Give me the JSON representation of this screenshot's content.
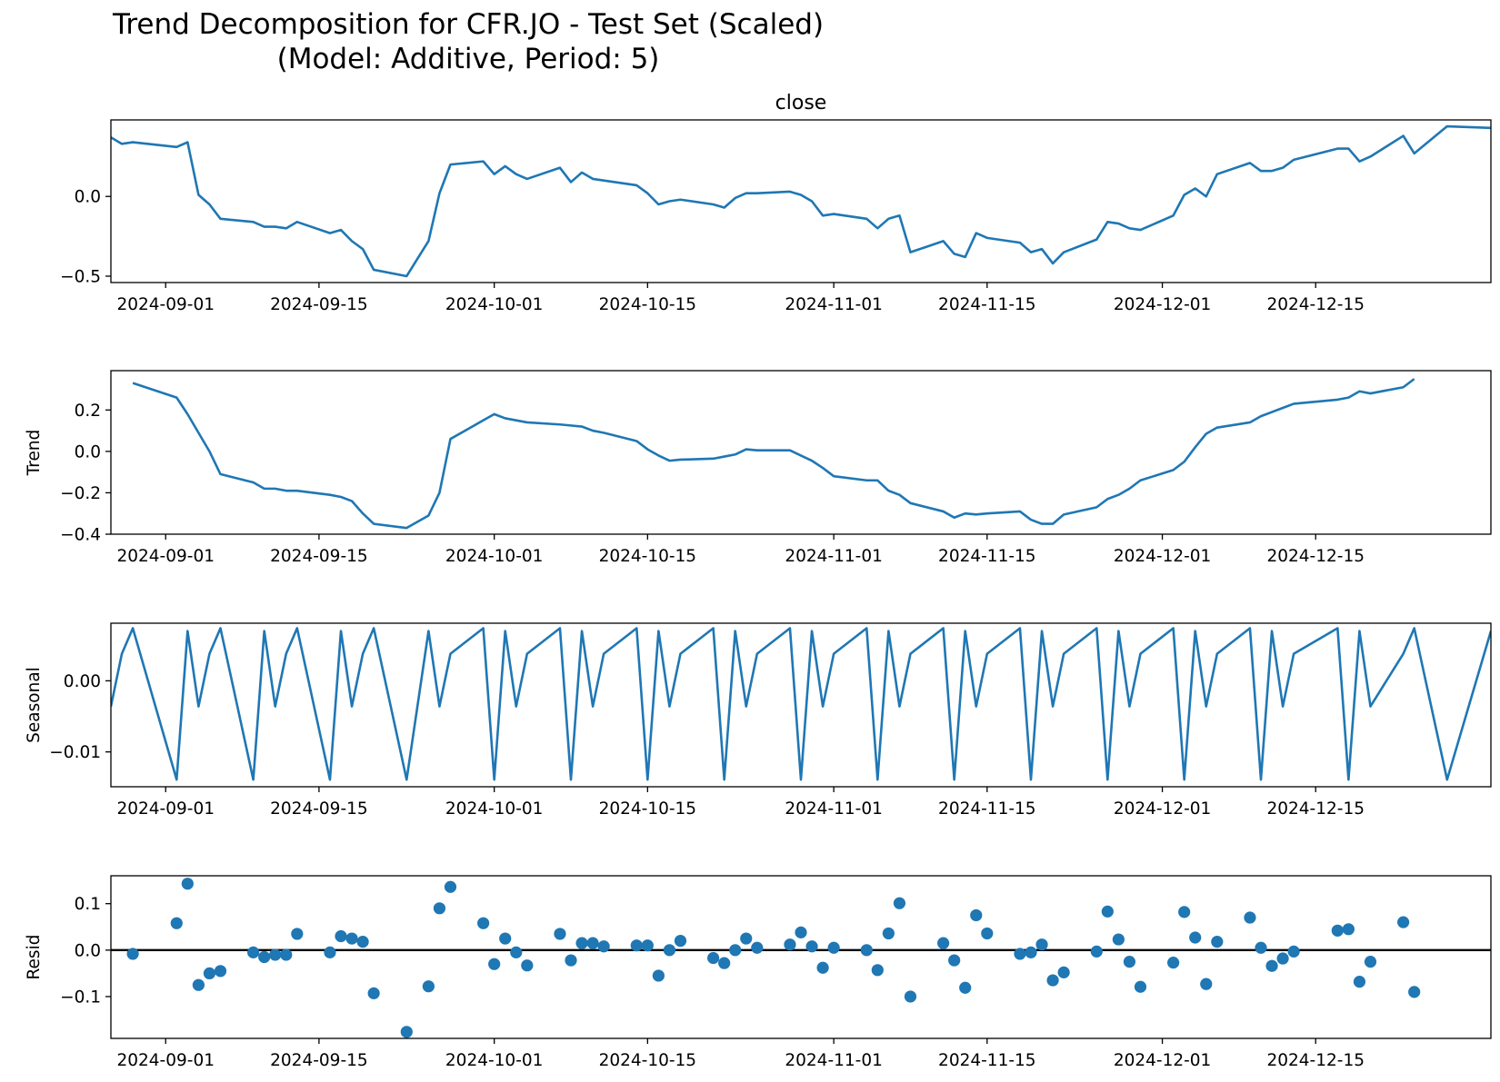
{
  "title": {
    "line1": "Trend Decomposition for CFR.JO - Test Set (Scaled)",
    "line2": "(Model: Additive, Period: 5)"
  },
  "colors": {
    "series": "#1f77b4",
    "zero_line": "#000000",
    "axes": "#000000"
  },
  "chart_data": [
    {
      "type": "line",
      "title": "close",
      "ylabel": "",
      "xlim": [
        "2024-08-27",
        "2024-12-31"
      ],
      "ylim": [
        -0.54,
        0.48
      ],
      "yticks": [
        0.0,
        -0.5
      ],
      "ytick_labels": [
        "0.0",
        "−0.5"
      ],
      "xticks": [
        "2024-09-01",
        "2024-09-15",
        "2024-10-01",
        "2024-10-15",
        "2024-11-01",
        "2024-11-15",
        "2024-12-01",
        "2024-12-15"
      ],
      "x": [
        "2024-08-27",
        "2024-08-28",
        "2024-08-29",
        "2024-09-02",
        "2024-09-03",
        "2024-09-04",
        "2024-09-05",
        "2024-09-06",
        "2024-09-09",
        "2024-09-10",
        "2024-09-11",
        "2024-09-12",
        "2024-09-13",
        "2024-09-16",
        "2024-09-17",
        "2024-09-18",
        "2024-09-19",
        "2024-09-20",
        "2024-09-23",
        "2024-09-25",
        "2024-09-26",
        "2024-09-27",
        "2024-09-30",
        "2024-10-01",
        "2024-10-02",
        "2024-10-03",
        "2024-10-04",
        "2024-10-07",
        "2024-10-08",
        "2024-10-09",
        "2024-10-10",
        "2024-10-11",
        "2024-10-14",
        "2024-10-15",
        "2024-10-16",
        "2024-10-17",
        "2024-10-18",
        "2024-10-21",
        "2024-10-22",
        "2024-10-23",
        "2024-10-24",
        "2024-10-25",
        "2024-10-28",
        "2024-10-29",
        "2024-10-30",
        "2024-10-31",
        "2024-11-01",
        "2024-11-04",
        "2024-11-05",
        "2024-11-06",
        "2024-11-07",
        "2024-11-08",
        "2024-11-11",
        "2024-11-12",
        "2024-11-13",
        "2024-11-14",
        "2024-11-15",
        "2024-11-18",
        "2024-11-19",
        "2024-11-20",
        "2024-11-21",
        "2024-11-22",
        "2024-11-25",
        "2024-11-26",
        "2024-11-27",
        "2024-11-28",
        "2024-11-29",
        "2024-12-02",
        "2024-12-03",
        "2024-12-04",
        "2024-12-05",
        "2024-12-06",
        "2024-12-09",
        "2024-12-10",
        "2024-12-11",
        "2024-12-12",
        "2024-12-13",
        "2024-12-17",
        "2024-12-18",
        "2024-12-19",
        "2024-12-20",
        "2024-12-23",
        "2024-12-24",
        "2024-12-27",
        "2024-12-31"
      ],
      "series": [
        {
          "values": [
            0.37,
            0.33,
            0.34,
            0.31,
            0.34,
            0.01,
            -0.05,
            -0.14,
            -0.16,
            -0.19,
            -0.19,
            -0.2,
            -0.16,
            -0.23,
            -0.21,
            -0.28,
            -0.33,
            -0.46,
            -0.5,
            -0.28,
            0.02,
            0.2,
            0.22,
            0.14,
            0.19,
            0.14,
            0.11,
            0.18,
            0.09,
            0.15,
            0.11,
            0.1,
            0.07,
            0.02,
            -0.05,
            -0.03,
            -0.02,
            -0.05,
            -0.07,
            -0.01,
            0.02,
            0.02,
            0.03,
            0.01,
            -0.03,
            -0.12,
            -0.11,
            -0.14,
            -0.2,
            -0.14,
            -0.12,
            -0.35,
            -0.28,
            -0.36,
            -0.38,
            -0.23,
            -0.26,
            -0.29,
            -0.35,
            -0.33,
            -0.42,
            -0.35,
            -0.27,
            -0.16,
            -0.17,
            -0.2,
            -0.21,
            -0.12,
            0.01,
            0.05,
            0.0,
            0.14,
            0.21,
            0.16,
            0.16,
            0.18,
            0.23,
            0.3,
            0.3,
            0.22,
            0.25,
            0.38,
            0.27,
            0.44,
            0.43
          ]
        }
      ]
    },
    {
      "type": "line",
      "title": "",
      "ylabel": "Trend",
      "xlim": [
        "2024-08-27",
        "2024-12-31"
      ],
      "ylim": [
        -0.4,
        0.39
      ],
      "yticks": [
        0.2,
        0.0,
        -0.2,
        -0.4
      ],
      "ytick_labels": [
        "0.2",
        "0.0",
        "−0.2",
        "−0.4"
      ],
      "xticks": [
        "2024-09-01",
        "2024-09-15",
        "2024-10-01",
        "2024-10-15",
        "2024-11-01",
        "2024-11-15",
        "2024-12-01",
        "2024-12-15"
      ],
      "x": [
        "2024-08-29",
        "2024-09-02",
        "2024-09-03",
        "2024-09-04",
        "2024-09-05",
        "2024-09-06",
        "2024-09-09",
        "2024-09-10",
        "2024-09-11",
        "2024-09-12",
        "2024-09-13",
        "2024-09-16",
        "2024-09-17",
        "2024-09-18",
        "2024-09-19",
        "2024-09-20",
        "2024-09-23",
        "2024-09-25",
        "2024-09-26",
        "2024-09-27",
        "2024-09-30",
        "2024-10-01",
        "2024-10-02",
        "2024-10-03",
        "2024-10-04",
        "2024-10-07",
        "2024-10-08",
        "2024-10-09",
        "2024-10-10",
        "2024-10-11",
        "2024-10-14",
        "2024-10-15",
        "2024-10-16",
        "2024-10-17",
        "2024-10-18",
        "2024-10-21",
        "2024-10-22",
        "2024-10-23",
        "2024-10-24",
        "2024-10-25",
        "2024-10-28",
        "2024-10-29",
        "2024-10-30",
        "2024-10-31",
        "2024-11-01",
        "2024-11-04",
        "2024-11-05",
        "2024-11-06",
        "2024-11-07",
        "2024-11-08",
        "2024-11-11",
        "2024-11-12",
        "2024-11-13",
        "2024-11-14",
        "2024-11-15",
        "2024-11-18",
        "2024-11-19",
        "2024-11-20",
        "2024-11-21",
        "2024-11-22",
        "2024-11-25",
        "2024-11-26",
        "2024-11-27",
        "2024-11-28",
        "2024-11-29",
        "2024-12-02",
        "2024-12-03",
        "2024-12-04",
        "2024-12-05",
        "2024-12-06",
        "2024-12-09",
        "2024-12-10",
        "2024-12-11",
        "2024-12-12",
        "2024-12-13",
        "2024-12-17",
        "2024-12-18",
        "2024-12-19",
        "2024-12-20",
        "2024-12-23",
        "2024-12-24"
      ],
      "series": [
        {
          "values": [
            0.33,
            0.26,
            0.18,
            0.09,
            0.0,
            -0.11,
            -0.15,
            -0.18,
            -0.18,
            -0.19,
            -0.19,
            -0.21,
            -0.22,
            -0.24,
            -0.3,
            -0.35,
            -0.37,
            -0.31,
            -0.2,
            0.06,
            0.15,
            0.18,
            0.16,
            0.15,
            0.14,
            0.13,
            0.125,
            0.12,
            0.1,
            0.09,
            0.05,
            0.01,
            -0.02,
            -0.045,
            -0.04,
            -0.035,
            -0.025,
            -0.015,
            0.01,
            0.005,
            0.005,
            -0.02,
            -0.045,
            -0.08,
            -0.12,
            -0.14,
            -0.14,
            -0.19,
            -0.21,
            -0.25,
            -0.29,
            -0.32,
            -0.3,
            -0.305,
            -0.3,
            -0.29,
            -0.33,
            -0.35,
            -0.35,
            -0.305,
            -0.27,
            -0.23,
            -0.21,
            -0.18,
            -0.14,
            -0.09,
            -0.05,
            0.02,
            0.085,
            0.115,
            0.14,
            0.17,
            0.19,
            0.21,
            0.23,
            0.25,
            0.26,
            0.29,
            0.28,
            0.31,
            0.35
          ]
        }
      ]
    },
    {
      "type": "line",
      "title": "",
      "ylabel": "Seasonal",
      "xlim": [
        "2024-08-27",
        "2024-12-31"
      ],
      "ylim": [
        -0.0149,
        0.0081
      ],
      "yticks": [
        0.0,
        -0.01
      ],
      "ytick_labels": [
        "0.00",
        "−0.01"
      ],
      "xticks": [
        "2024-09-01",
        "2024-09-15",
        "2024-10-01",
        "2024-10-15",
        "2024-11-01",
        "2024-11-15",
        "2024-12-01",
        "2024-12-15"
      ],
      "x": [
        "2024-08-27",
        "2024-08-28",
        "2024-08-29",
        "2024-09-02",
        "2024-09-03",
        "2024-09-04",
        "2024-09-05",
        "2024-09-06",
        "2024-09-09",
        "2024-09-10",
        "2024-09-11",
        "2024-09-12",
        "2024-09-13",
        "2024-09-16",
        "2024-09-17",
        "2024-09-18",
        "2024-09-19",
        "2024-09-20",
        "2024-09-23",
        "2024-09-25",
        "2024-09-26",
        "2024-09-27",
        "2024-09-30",
        "2024-10-01",
        "2024-10-02",
        "2024-10-03",
        "2024-10-04",
        "2024-10-07",
        "2024-10-08",
        "2024-10-09",
        "2024-10-10",
        "2024-10-11",
        "2024-10-14",
        "2024-10-15",
        "2024-10-16",
        "2024-10-17",
        "2024-10-18",
        "2024-10-21",
        "2024-10-22",
        "2024-10-23",
        "2024-10-24",
        "2024-10-25",
        "2024-10-28",
        "2024-10-29",
        "2024-10-30",
        "2024-10-31",
        "2024-11-01",
        "2024-11-04",
        "2024-11-05",
        "2024-11-06",
        "2024-11-07",
        "2024-11-08",
        "2024-11-11",
        "2024-11-12",
        "2024-11-13",
        "2024-11-14",
        "2024-11-15",
        "2024-11-18",
        "2024-11-19",
        "2024-11-20",
        "2024-11-21",
        "2024-11-22",
        "2024-11-25",
        "2024-11-26",
        "2024-11-27",
        "2024-11-28",
        "2024-11-29",
        "2024-12-02",
        "2024-12-03",
        "2024-12-04",
        "2024-12-05",
        "2024-12-06",
        "2024-12-09",
        "2024-12-10",
        "2024-12-11",
        "2024-12-12",
        "2024-12-13",
        "2024-12-17",
        "2024-12-18",
        "2024-12-19",
        "2024-12-20",
        "2024-12-23",
        "2024-12-24",
        "2024-12-27",
        "2024-12-31"
      ],
      "series": [
        {
          "values": [
            -0.0036,
            0.0038,
            0.0074,
            -0.0139,
            0.007,
            -0.0036,
            0.0038,
            0.0074,
            -0.0139,
            0.007,
            -0.0036,
            0.0038,
            0.0074,
            -0.0139,
            0.007,
            -0.0036,
            0.0038,
            0.0074,
            -0.0139,
            0.007,
            -0.0036,
            0.0038,
            0.0074,
            -0.0139,
            0.007,
            -0.0036,
            0.0038,
            0.0074,
            -0.0139,
            0.007,
            -0.0036,
            0.0038,
            0.0074,
            -0.0139,
            0.007,
            -0.0036,
            0.0038,
            0.0074,
            -0.0139,
            0.007,
            -0.0036,
            0.0038,
            0.0074,
            -0.0139,
            0.007,
            -0.0036,
            0.0038,
            0.0074,
            -0.0139,
            0.007,
            -0.0036,
            0.0038,
            0.0074,
            -0.0139,
            0.007,
            -0.0036,
            0.0038,
            0.0074,
            -0.0139,
            0.007,
            -0.0036,
            0.0038,
            0.0074,
            -0.0139,
            0.007,
            -0.0036,
            0.0038,
            0.0074,
            -0.0139,
            0.007,
            -0.0036,
            0.0038,
            0.0074,
            -0.0139,
            0.007,
            -0.0036,
            0.0038,
            0.0074,
            -0.0139,
            0.007,
            -0.0036,
            0.0038,
            0.0074,
            -0.0139,
            0.007
          ]
        }
      ]
    },
    {
      "type": "scatter",
      "title": "",
      "ylabel": "Resid",
      "xlim": [
        "2024-08-27",
        "2024-12-31"
      ],
      "ylim": [
        -0.19,
        0.16
      ],
      "yticks": [
        0.1,
        0.0,
        -0.1
      ],
      "ytick_labels": [
        "0.1",
        "0.0",
        "−0.1"
      ],
      "zero_line": 0.0,
      "xticks": [
        "2024-09-01",
        "2024-09-15",
        "2024-10-01",
        "2024-10-15",
        "2024-11-01",
        "2024-11-15",
        "2024-12-01",
        "2024-12-15"
      ],
      "x": [
        "2024-08-29",
        "2024-09-02",
        "2024-09-03",
        "2024-09-04",
        "2024-09-05",
        "2024-09-06",
        "2024-09-09",
        "2024-09-10",
        "2024-09-11",
        "2024-09-12",
        "2024-09-13",
        "2024-09-16",
        "2024-09-17",
        "2024-09-18",
        "2024-09-19",
        "2024-09-20",
        "2024-09-23",
        "2024-09-25",
        "2024-09-26",
        "2024-09-27",
        "2024-09-30",
        "2024-10-01",
        "2024-10-02",
        "2024-10-03",
        "2024-10-04",
        "2024-10-07",
        "2024-10-08",
        "2024-10-09",
        "2024-10-10",
        "2024-10-11",
        "2024-10-14",
        "2024-10-15",
        "2024-10-16",
        "2024-10-17",
        "2024-10-18",
        "2024-10-21",
        "2024-10-22",
        "2024-10-23",
        "2024-10-24",
        "2024-10-25",
        "2024-10-28",
        "2024-10-29",
        "2024-10-30",
        "2024-10-31",
        "2024-11-01",
        "2024-11-04",
        "2024-11-05",
        "2024-11-06",
        "2024-11-07",
        "2024-11-08",
        "2024-11-11",
        "2024-11-12",
        "2024-11-13",
        "2024-11-14",
        "2024-11-15",
        "2024-11-18",
        "2024-11-19",
        "2024-11-20",
        "2024-11-21",
        "2024-11-22",
        "2024-11-25",
        "2024-11-26",
        "2024-11-27",
        "2024-11-28",
        "2024-11-29",
        "2024-12-02",
        "2024-12-03",
        "2024-12-04",
        "2024-12-05",
        "2024-12-06",
        "2024-12-09",
        "2024-12-10",
        "2024-12-11",
        "2024-12-12",
        "2024-12-13",
        "2024-12-17",
        "2024-12-18",
        "2024-12-19",
        "2024-12-20",
        "2024-12-23",
        "2024-12-24"
      ],
      "series": [
        {
          "values": [
            -0.008,
            0.058,
            0.143,
            -0.075,
            -0.05,
            -0.045,
            -0.005,
            -0.015,
            -0.01,
            -0.01,
            0.035,
            -0.005,
            0.03,
            0.025,
            0.018,
            -0.093,
            -0.176,
            -0.078,
            0.09,
            0.136,
            0.058,
            -0.03,
            0.025,
            -0.005,
            -0.033,
            0.035,
            -0.022,
            0.015,
            0.015,
            0.008,
            0.01,
            0.01,
            -0.055,
            0.0,
            0.02,
            -0.017,
            -0.028,
            0.0,
            0.025,
            0.005,
            0.012,
            0.038,
            0.008,
            -0.038,
            0.005,
            0.0,
            -0.043,
            0.036,
            0.101,
            -0.1,
            0.015,
            -0.022,
            -0.081,
            0.075,
            0.036,
            -0.008,
            -0.005,
            0.012,
            -0.065,
            -0.048,
            -0.003,
            0.083,
            0.023,
            -0.025,
            -0.079,
            -0.027,
            0.082,
            0.027,
            -0.073,
            0.018,
            0.07,
            0.005,
            -0.034,
            -0.018,
            -0.003,
            0.042,
            0.045,
            -0.068,
            -0.025,
            0.06,
            -0.09
          ]
        }
      ]
    }
  ]
}
